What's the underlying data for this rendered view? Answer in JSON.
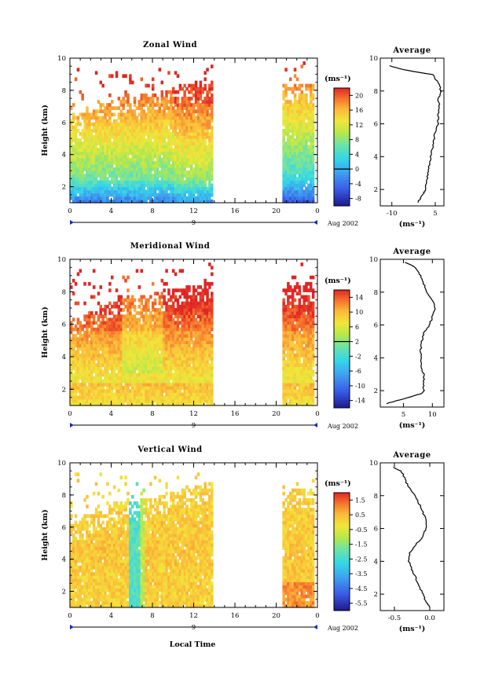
{
  "figure": {
    "xlabel_bottom": "Local Time",
    "date_label": "Aug 2002",
    "day_label": "9",
    "x_ticks": [
      "0",
      "4",
      "8",
      "12",
      "16",
      "20",
      "0"
    ]
  },
  "chart_data": [
    {
      "type": "heatmap",
      "title": "Zonal Wind",
      "ylabel": "Height (km)",
      "xlabel": "Local Time",
      "x_range": [
        0,
        24
      ],
      "ylim": [
        1,
        10
      ],
      "y_ticks": [
        2,
        4,
        6,
        8,
        10
      ],
      "data_windows": [
        [
          0,
          13.8
        ],
        [
          20.6,
          23.6
        ]
      ],
      "colorbar": {
        "unit": "(ms⁻¹)",
        "ticks": [
          20,
          16,
          12,
          8,
          4,
          0,
          -4,
          -8
        ],
        "range": [
          -10,
          22
        ],
        "contour": 0
      },
      "profile": {
        "title": "Average",
        "xlim": [
          -14,
          8
        ],
        "x_ticks": [
          "-10",
          "5"
        ],
        "x_tick_values": [
          -10,
          5
        ],
        "xlabel": "(ms⁻¹)",
        "height": [
          1.2,
          1.5,
          1.8,
          2.0,
          2.5,
          3,
          3.5,
          4,
          4.5,
          5,
          5.5,
          6,
          6.5,
          7,
          7.5,
          8,
          8.5,
          9,
          9.3,
          9.6
        ],
        "wind": [
          -1,
          0,
          1,
          1.5,
          2,
          2.5,
          3,
          3.5,
          4,
          4.5,
          5,
          6,
          6,
          6.5,
          6,
          7,
          6,
          4,
          -6,
          -12
        ]
      }
    },
    {
      "type": "heatmap",
      "title": "Meridional Wind",
      "ylabel": "Height (km)",
      "xlabel": "Local Time",
      "x_range": [
        0,
        24
      ],
      "ylim": [
        1,
        10
      ],
      "y_ticks": [
        2,
        4,
        6,
        8,
        10
      ],
      "data_windows": [
        [
          0,
          13.8
        ],
        [
          20.6,
          23.6
        ]
      ],
      "colorbar": {
        "unit": "(ms⁻¹)",
        "ticks": [
          14,
          10,
          6,
          2,
          -2,
          -6,
          -10,
          -14
        ],
        "range": [
          -16,
          16
        ],
        "contour": 2
      },
      "profile": {
        "title": "Average",
        "xlim": [
          1,
          12
        ],
        "x_ticks": [
          "5",
          "10"
        ],
        "x_tick_values": [
          5,
          10
        ],
        "xlabel": "(ms⁻¹)",
        "height": [
          1.2,
          1.5,
          1.8,
          2.0,
          2.5,
          3,
          3.5,
          4,
          4.5,
          5,
          5.5,
          6,
          6.5,
          7,
          7.5,
          8,
          8.5,
          9,
          9.5,
          9.9
        ],
        "wind": [
          2,
          5,
          8,
          8.5,
          8.5,
          8.5,
          8,
          8,
          8,
          8.2,
          8.5,
          9.5,
          10,
          10.5,
          10,
          9,
          8.5,
          8,
          7,
          5
        ]
      }
    },
    {
      "type": "heatmap",
      "title": "Vertical Wind",
      "ylabel": "Height (km)",
      "xlabel": "Local Time",
      "x_range": [
        0,
        24
      ],
      "ylim": [
        1,
        10
      ],
      "y_ticks": [
        2,
        4,
        6,
        8,
        10
      ],
      "data_windows": [
        [
          0,
          13.8
        ],
        [
          20.6,
          23.6
        ]
      ],
      "colorbar": {
        "unit": "(ms⁻¹)",
        "ticks": [
          1.5,
          0.5,
          -0.5,
          -1.5,
          -2.5,
          -3.5,
          -4.5,
          -5.5
        ],
        "range": [
          -6,
          2
        ]
      },
      "profile": {
        "title": "Average",
        "xlim": [
          -0.7,
          0.2
        ],
        "x_ticks": [
          "-0.5",
          "0.0"
        ],
        "x_tick_values": [
          -0.5,
          0.0
        ],
        "xlabel": "(ms⁻¹)",
        "height": [
          1.2,
          1.5,
          2.0,
          2.5,
          3,
          3.5,
          4,
          4.5,
          5,
          5.5,
          6,
          6.5,
          7,
          7.5,
          8,
          8.5,
          9,
          9.5,
          9.8
        ],
        "wind": [
          0.0,
          -0.05,
          -0.1,
          -0.15,
          -0.2,
          -0.25,
          -0.3,
          -0.28,
          -0.2,
          -0.1,
          -0.05,
          -0.05,
          -0.1,
          -0.15,
          -0.2,
          -0.3,
          -0.35,
          -0.4,
          -0.55
        ]
      }
    }
  ]
}
